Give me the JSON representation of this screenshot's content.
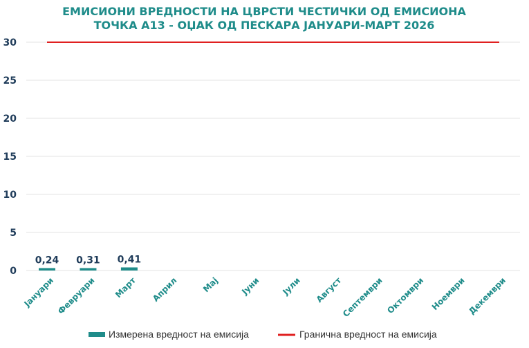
{
  "chart_data": {
    "type": "bar",
    "title": [
      "ЕМИСИОНИ ВРЕДНОСТИ НА ЦВРСТИ ЧЕСТИЧКИ ОД ЕМИСИОНА",
      "ТОЧКА А13 - ОЏАК ОД ПЕСКАРА ЈАНУАРИ-МАРТ 2026"
    ],
    "categories": [
      "Јануари",
      "Февруари",
      "Март",
      "Април",
      "Мај",
      "Јуни",
      "Јули",
      "Август",
      "Септември",
      "Октомври",
      "Ноември",
      "Декември"
    ],
    "series": [
      {
        "name": "Измерена вредност на емисија",
        "type": "bar",
        "color": "#1f8c8a",
        "values": [
          0.24,
          0.31,
          0.41,
          null,
          null,
          null,
          null,
          null,
          null,
          null,
          null,
          null
        ],
        "data_labels": [
          "0,24",
          "0,31",
          "0,41"
        ]
      },
      {
        "name": "Гранична вредност на емисија",
        "type": "line",
        "color": "#e02020",
        "values": [
          30,
          30,
          30,
          30,
          30,
          30,
          30,
          30,
          30,
          30,
          30,
          30
        ]
      }
    ],
    "ylim": [
      0,
      30
    ],
    "yticks": [
      "0",
      "5",
      "10",
      "15",
      "20",
      "25",
      "30"
    ],
    "grid": true,
    "legend_position": "bottom"
  }
}
